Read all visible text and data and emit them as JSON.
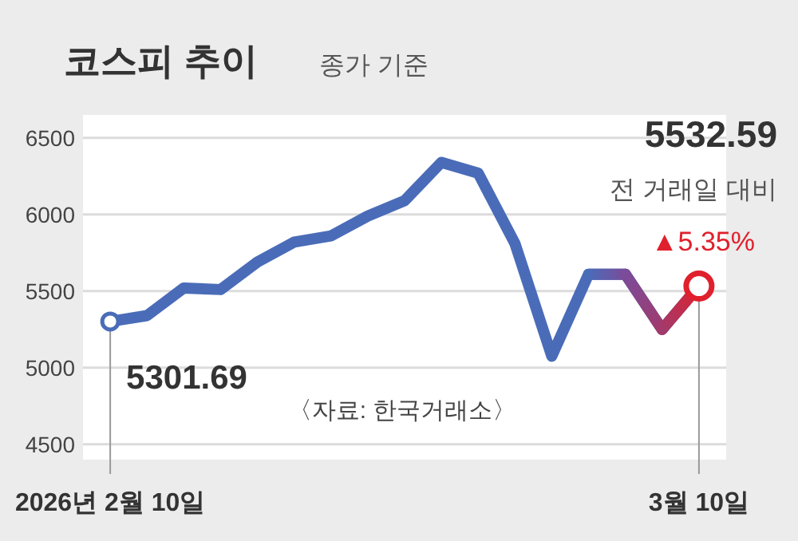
{
  "chart_data": {
    "type": "line",
    "title": "코스피 추이",
    "subtitle": "종가 기준",
    "categories": [
      "2026년 2월 10일",
      null,
      null,
      null,
      null,
      null,
      null,
      null,
      null,
      null,
      null,
      null,
      null,
      null,
      null,
      null,
      "3월 10일"
    ],
    "series": [
      {
        "color": "#4a6cb8",
        "colors": [
          "#4a6cb8",
          "#4a6cb8",
          "#4a6cb8",
          "#4a6cb8",
          "#4a6cb8",
          "#4a6cb8",
          "#4a6cb8",
          "#4a6cb8",
          "#4a6cb8",
          "#4a6cb8",
          "#4a6cb8",
          "#4a6cb8",
          "#4a6cb8",
          "#4a6cb8",
          "#7a4c9a",
          "#a23a6c",
          "#e0202c"
        ],
        "values": [
          5301.69,
          5340,
          5520,
          5510,
          5690,
          5820,
          5860,
          5990,
          6090,
          6340,
          6270,
          5810,
          5075,
          5610,
          5610,
          5250,
          5532.59
        ]
      }
    ],
    "ylim": [
      4400,
      6650
    ],
    "yticks": [
      4500,
      5000,
      5500,
      6000,
      6500
    ],
    "grid": "y",
    "line_style": "solid",
    "annotations": [
      {
        "text": "5301.69",
        "x": "2026년 2월 10일",
        "y": 5301.69
      },
      "5532.59",
      "전 거래일 대비",
      "▲5.35%",
      "〈자료: 한국거래소〉"
    ]
  }
}
